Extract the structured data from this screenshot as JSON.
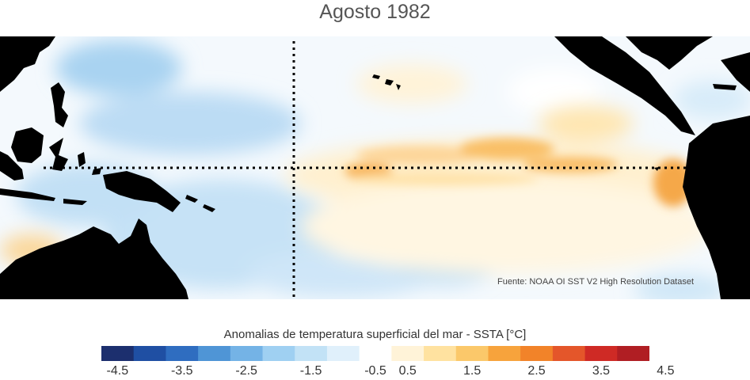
{
  "title": "Agosto 1982",
  "credit": "Fuente: NOAA OI SST V2 High Resolution Dataset",
  "legend": {
    "title": "Anomalias de temperatura superficial del mar - SSTA  [°C]",
    "colors": [
      "#1c2f6e",
      "#1f4fa3",
      "#2f6dc0",
      "#4f95d6",
      "#74b3e6",
      "#9fd0f2",
      "#c2e2f6",
      "#e0f0fb",
      "#ffffff",
      "#fff3d8",
      "#ffe2a0",
      "#fbc86a",
      "#f7a33c",
      "#f28329",
      "#e4562a",
      "#cf2a25",
      "#b01e23"
    ],
    "ticks": [
      "-4.5",
      "-3.5",
      "-2.5",
      "-1.5",
      "-0.5",
      "0.5",
      "1.5",
      "2.5",
      "3.5",
      "4.5"
    ]
  },
  "colors": {
    "land": "#000000",
    "ocean_base": "#f3f8fd",
    "guide_line": "#000000"
  }
}
